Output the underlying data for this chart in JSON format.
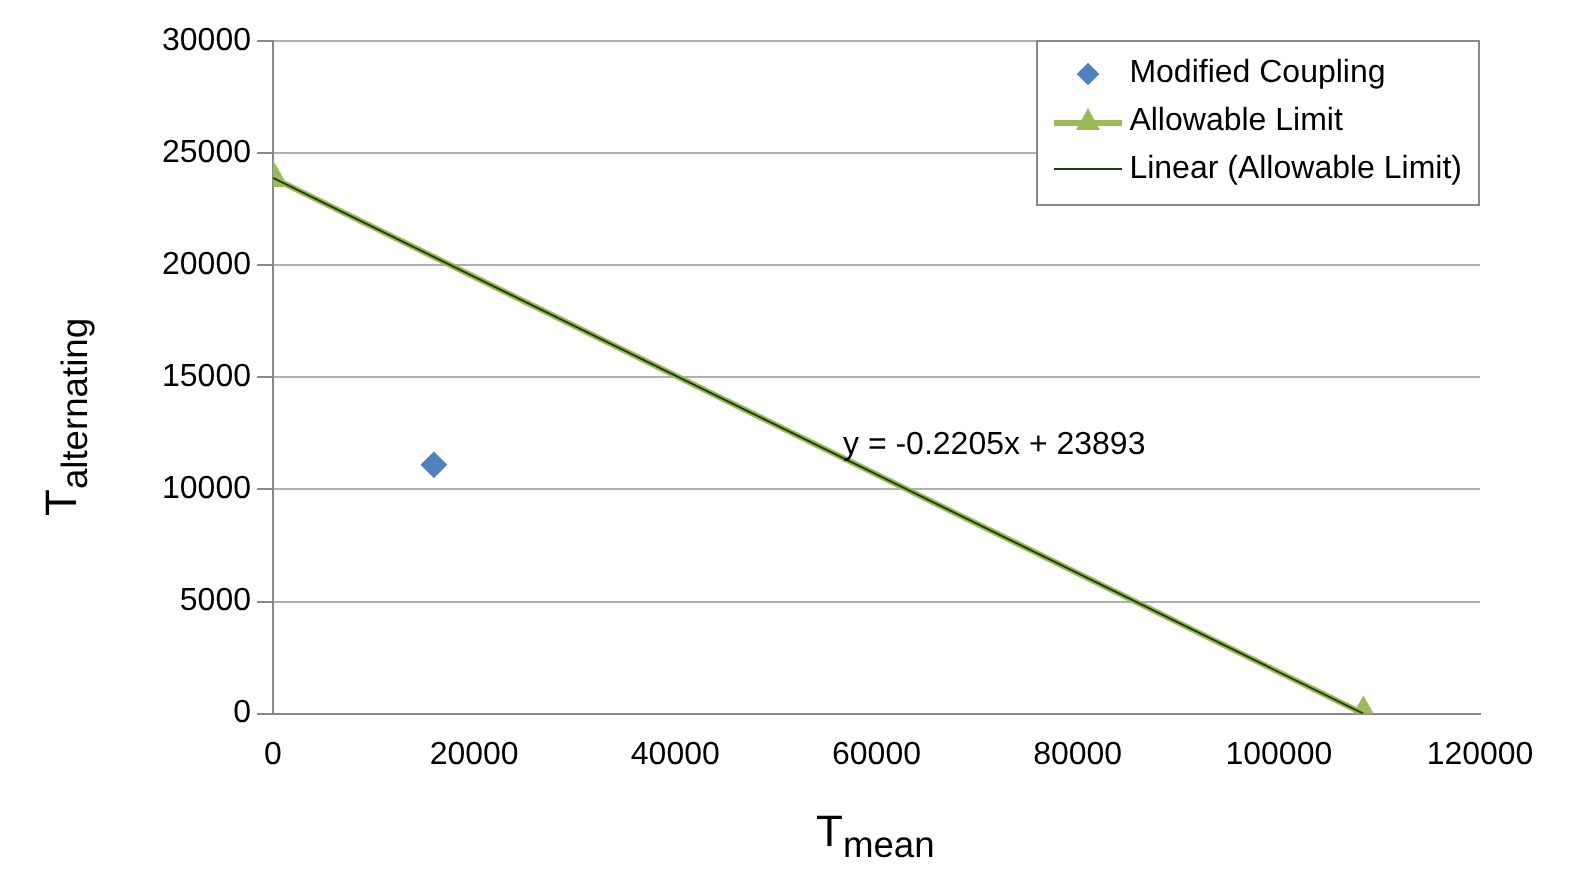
{
  "chart_data": {
    "type": "scatter",
    "xlabel": "T$_{mean}$",
    "ylabel": "T$_{alternating}$",
    "series": [
      {
        "name": "Modified Coupling",
        "marker": "diamond",
        "color": "#4f81bd",
        "x": [
          16000
        ],
        "values": [
          11100
        ]
      },
      {
        "name": "Allowable Limit",
        "type": "line",
        "marker": "triangle",
        "color": "#9bbb59",
        "x": [
          0,
          108400
        ],
        "values": [
          23900,
          0
        ]
      },
      {
        "name": "Linear (Allowable Limit)",
        "type": "line",
        "marker": "none",
        "color": "#1f3d0c",
        "x": [
          0,
          108400
        ],
        "values": [
          23900,
          0
        ]
      }
    ],
    "annotations": [
      "y = -0.2205x + 23893"
    ],
    "xlim": [
      0,
      120000
    ],
    "xticks": [
      0,
      20000,
      40000,
      60000,
      80000,
      100000,
      120000
    ],
    "ylim": [
      0,
      30000
    ],
    "yticks": [
      0,
      5000,
      10000,
      15000,
      20000,
      25000,
      30000
    ],
    "grid": "y",
    "legend": "top right"
  }
}
